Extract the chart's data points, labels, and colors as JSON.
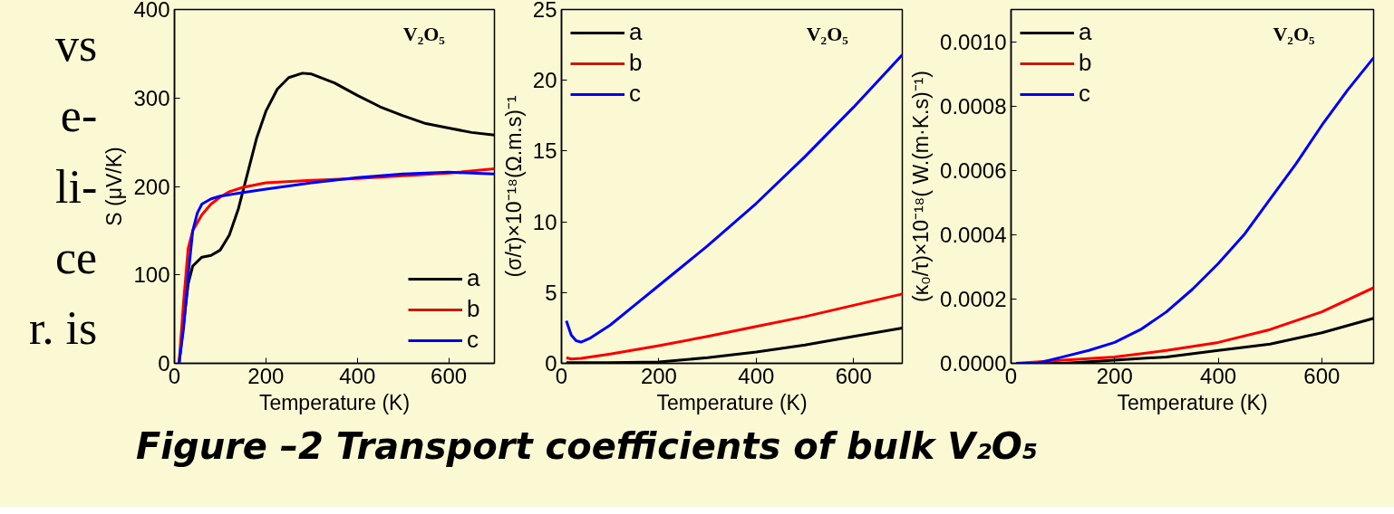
{
  "chart_data": [
    {
      "type": "other",
      "annotations": [
        "vs",
        "e-",
        "li-",
        "ce",
        "r. is"
      ]
    },
    {
      "type": "line",
      "xlabel": "Temperature (K)",
      "ylabel": "S (μV/K)",
      "annotations": [
        "V₂O₅"
      ],
      "legend": "bottom right",
      "xlim": [
        0,
        700
      ],
      "ylim": [
        0,
        400
      ],
      "xticks": [
        0,
        200,
        400,
        600
      ],
      "yticks": [
        0,
        100,
        200,
        300,
        400
      ],
      "grid": false,
      "series": [
        {
          "name": "a",
          "color": "#000000",
          "x": [
            10,
            30,
            40,
            60,
            80,
            100,
            120,
            140,
            160,
            180,
            200,
            225,
            250,
            280,
            300,
            350,
            400,
            450,
            500,
            550,
            600,
            650,
            700
          ],
          "values": [
            0,
            90,
            110,
            120,
            122,
            128,
            145,
            175,
            215,
            255,
            285,
            310,
            323,
            328,
            327,
            317,
            303,
            290,
            280,
            271,
            266,
            261,
            258
          ]
        },
        {
          "name": "b",
          "color": "#ff0000",
          "x": [
            10,
            20,
            30,
            40,
            60,
            80,
            100,
            120,
            150,
            200,
            300,
            400,
            500,
            600,
            700
          ],
          "values": [
            0,
            70,
            130,
            150,
            168,
            180,
            188,
            194,
            199,
            204,
            207,
            209,
            212,
            215,
            220
          ]
        },
        {
          "name": "c",
          "color": "#0000ff",
          "x": [
            10,
            20,
            30,
            40,
            50,
            60,
            80,
            100,
            150,
            200,
            300,
            400,
            500,
            600,
            700
          ],
          "values": [
            0,
            40,
            100,
            150,
            170,
            180,
            186,
            189,
            193,
            197,
            204,
            210,
            214,
            216,
            214
          ]
        }
      ]
    },
    {
      "type": "line",
      "xlabel": "Temperature (K)",
      "ylabel": "(σ/τ)×10⁻¹⁸(Ω.m.s)⁻¹",
      "annotations": [
        "V₂O₅"
      ],
      "legend": "top left",
      "xlim": [
        0,
        700
      ],
      "ylim": [
        0,
        25
      ],
      "xticks": [
        0,
        200,
        400,
        600
      ],
      "yticks": [
        0,
        5,
        10,
        15,
        20,
        25
      ],
      "grid": false,
      "series": [
        {
          "name": "a",
          "color": "#000000",
          "x": [
            10,
            100,
            200,
            300,
            400,
            500,
            600,
            700
          ],
          "values": [
            0.05,
            0.05,
            0.1,
            0.4,
            0.8,
            1.3,
            1.9,
            2.5
          ]
        },
        {
          "name": "b",
          "color": "#ff0000",
          "x": [
            10,
            20,
            40,
            100,
            200,
            300,
            400,
            500,
            600,
            700
          ],
          "values": [
            0.4,
            0.3,
            0.35,
            0.65,
            1.25,
            1.9,
            2.6,
            3.3,
            4.1,
            4.9
          ]
        },
        {
          "name": "c",
          "color": "#0000ff",
          "x": [
            10,
            15,
            20,
            30,
            40,
            60,
            100,
            150,
            200,
            300,
            400,
            500,
            600,
            700
          ],
          "values": [
            3.0,
            2.5,
            2.0,
            1.6,
            1.5,
            1.8,
            2.7,
            4.1,
            5.5,
            8.3,
            11.3,
            14.6,
            18.1,
            21.8
          ]
        }
      ]
    },
    {
      "type": "line",
      "xlabel": "Temperature (K)",
      "ylabel": "(κ₀/τ)×10⁻¹⁸( W.(m·K.s)⁻¹)",
      "annotations": [
        "V₂O₅",
        "Figure –2 Transport coefficients of bulk V₂O₅"
      ],
      "legend": "top left",
      "xlim": [
        0,
        700
      ],
      "ylim": [
        0,
        0.0011
      ],
      "xticks": [
        0,
        200,
        400,
        600
      ],
      "yticks": [
        {
          "value": 0,
          "label": "0.0000"
        },
        {
          "value": 0.0002,
          "label": "0.0002"
        },
        {
          "value": 0.0004,
          "label": "0.0004"
        },
        {
          "value": 0.0006,
          "label": "0.0006"
        },
        {
          "value": 0.0008,
          "label": "0.0008"
        },
        {
          "value": 0.001,
          "label": "0.0010"
        }
      ],
      "grid": false,
      "series": [
        {
          "name": "a",
          "color": "#000000",
          "x": [
            10,
            100,
            200,
            300,
            400,
            500,
            600,
            700
          ],
          "values": [
            0,
            0,
            1e-05,
            2e-05,
            4e-05,
            6e-05,
            9.5e-05,
            0.00014
          ]
        },
        {
          "name": "b",
          "color": "#ff0000",
          "x": [
            10,
            100,
            200,
            300,
            400,
            500,
            600,
            700
          ],
          "values": [
            0,
            1e-05,
            2e-05,
            4e-05,
            6.5e-05,
            0.000105,
            0.00016,
            0.000235
          ]
        },
        {
          "name": "c",
          "color": "#0000ff",
          "x": [
            10,
            50,
            100,
            150,
            200,
            250,
            300,
            350,
            400,
            450,
            500,
            550,
            600,
            650,
            700
          ],
          "values": [
            0,
            0,
            2e-05,
            4e-05,
            6.5e-05,
            0.000105,
            0.00016,
            0.00023,
            0.00031,
            0.0004,
            0.00051,
            0.00062,
            0.00074,
            0.00085,
            0.00095
          ]
        }
      ]
    }
  ]
}
